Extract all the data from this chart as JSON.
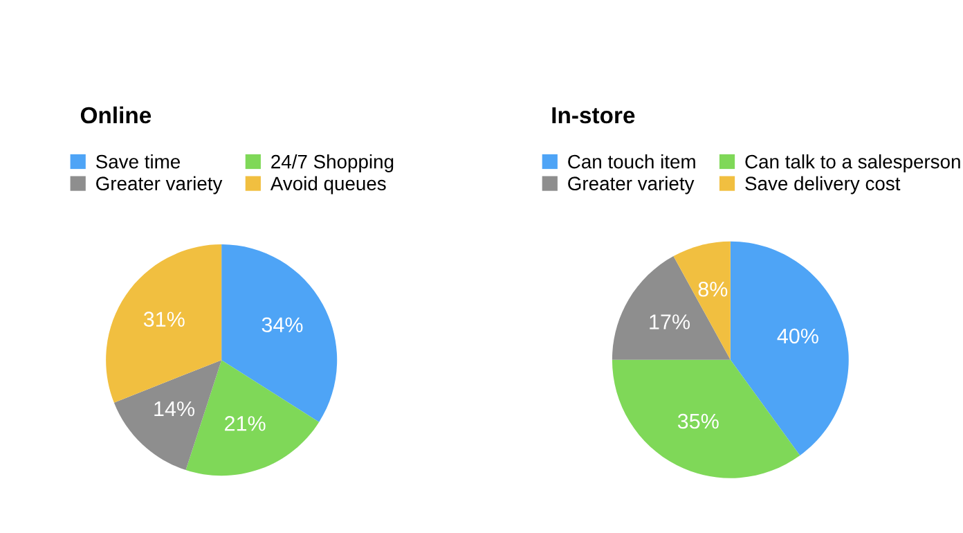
{
  "chart_data": [
    {
      "type": "pie",
      "title": "Online",
      "categories": [
        "Save time",
        "24/7 Shopping",
        "Greater variety",
        "Avoid queues"
      ],
      "values": [
        34,
        21,
        14,
        31
      ],
      "value_labels": [
        "34%",
        "21%",
        "14%",
        "31%"
      ],
      "colors": [
        "#4ea4f6",
        "#7fd858",
        "#8e8e8e",
        "#f1bf40"
      ],
      "legend": "top"
    },
    {
      "type": "pie",
      "title": "In-store",
      "categories": [
        "Can touch item",
        "Can talk to a salesperson",
        "Greater variety",
        "Save delivery cost"
      ],
      "values": [
        40,
        35,
        17,
        8
      ],
      "value_labels": [
        "40%",
        "35%",
        "17%",
        "8%"
      ],
      "colors": [
        "#4ea4f6",
        "#7fd858",
        "#8e8e8e",
        "#f1bf40"
      ],
      "legend": "top"
    }
  ]
}
